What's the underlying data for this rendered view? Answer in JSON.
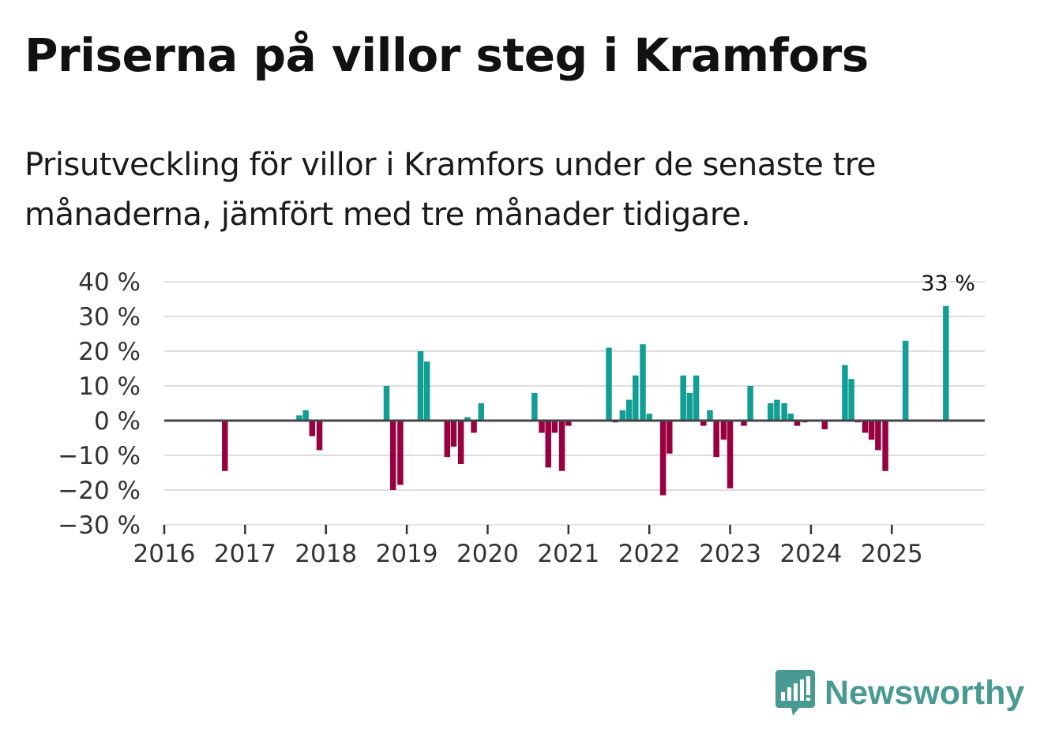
{
  "title": "Priserna på villor steg i Kramfors",
  "subtitle": "Prisutveckling för villor i Kramfors under de senaste tre månaderna, jämfört med tre månader tidigare.",
  "brand": {
    "name": "Newsworthy",
    "icon": "newsworthy-logo-icon"
  },
  "colors": {
    "positive": "#129e95",
    "negative": "#990040",
    "zero_line": "#444444",
    "grid": "#dddddd"
  },
  "chart_data": {
    "type": "bar",
    "unit": "%",
    "ylim": [
      -30,
      40
    ],
    "yticks": [
      -30,
      -20,
      -10,
      0,
      10,
      20,
      30,
      40
    ],
    "ytick_labels": [
      "−30 %",
      "−20 %",
      "−10 %",
      "0 %",
      "10 %",
      "20 %",
      "30 %",
      "40 %"
    ],
    "xlim": [
      2016.0,
      2026.15
    ],
    "xticks": [
      2016,
      2017,
      2018,
      2019,
      2020,
      2021,
      2022,
      2023,
      2024,
      2025
    ],
    "xtick_labels": [
      "2016",
      "2017",
      "2018",
      "2019",
      "2020",
      "2021",
      "2022",
      "2023",
      "2024",
      "2025"
    ],
    "annotation": {
      "text": "33 %",
      "x": 2025.67
    },
    "series": [
      {
        "name": "Prisutveckling",
        "points": [
          {
            "x": 2016.75,
            "y": -14.5
          },
          {
            "x": 2017.67,
            "y": 1.5
          },
          {
            "x": 2017.75,
            "y": 3.0
          },
          {
            "x": 2017.83,
            "y": -4.5
          },
          {
            "x": 2017.92,
            "y": -8.5
          },
          {
            "x": 2018.75,
            "y": 10.0
          },
          {
            "x": 2018.83,
            "y": -20.0
          },
          {
            "x": 2018.92,
            "y": -18.5
          },
          {
            "x": 2019.17,
            "y": 20.0
          },
          {
            "x": 2019.25,
            "y": 17.0
          },
          {
            "x": 2019.5,
            "y": -10.5
          },
          {
            "x": 2019.58,
            "y": -7.5
          },
          {
            "x": 2019.67,
            "y": -12.5
          },
          {
            "x": 2019.75,
            "y": 1.0
          },
          {
            "x": 2019.83,
            "y": -3.5
          },
          {
            "x": 2019.92,
            "y": 5.0
          },
          {
            "x": 2020.58,
            "y": 8.0
          },
          {
            "x": 2020.67,
            "y": -3.5
          },
          {
            "x": 2020.75,
            "y": -13.5
          },
          {
            "x": 2020.83,
            "y": -3.5
          },
          {
            "x": 2020.92,
            "y": -14.5
          },
          {
            "x": 2021.0,
            "y": -1.5
          },
          {
            "x": 2021.5,
            "y": 21.0
          },
          {
            "x": 2021.58,
            "y": -0.5
          },
          {
            "x": 2021.67,
            "y": 3.0
          },
          {
            "x": 2021.75,
            "y": 6.0
          },
          {
            "x": 2021.83,
            "y": 13.0
          },
          {
            "x": 2021.92,
            "y": 22.0
          },
          {
            "x": 2022.0,
            "y": 2.0
          },
          {
            "x": 2022.17,
            "y": -21.5
          },
          {
            "x": 2022.25,
            "y": -9.5
          },
          {
            "x": 2022.42,
            "y": 13.0
          },
          {
            "x": 2022.5,
            "y": 8.0
          },
          {
            "x": 2022.58,
            "y": 13.0
          },
          {
            "x": 2022.67,
            "y": -1.5
          },
          {
            "x": 2022.75,
            "y": 3.0
          },
          {
            "x": 2022.83,
            "y": -10.5
          },
          {
            "x": 2022.92,
            "y": -5.5
          },
          {
            "x": 2023.0,
            "y": -19.5
          },
          {
            "x": 2023.17,
            "y": -1.5
          },
          {
            "x": 2023.25,
            "y": 10.0
          },
          {
            "x": 2023.5,
            "y": 5.0
          },
          {
            "x": 2023.58,
            "y": 6.0
          },
          {
            "x": 2023.67,
            "y": 5.0
          },
          {
            "x": 2023.75,
            "y": 2.0
          },
          {
            "x": 2023.83,
            "y": -1.5
          },
          {
            "x": 2023.92,
            "y": -0.5
          },
          {
            "x": 2024.17,
            "y": -2.5
          },
          {
            "x": 2024.42,
            "y": 16.0
          },
          {
            "x": 2024.5,
            "y": 12.0
          },
          {
            "x": 2024.58,
            "y": -0.5
          },
          {
            "x": 2024.67,
            "y": -3.5
          },
          {
            "x": 2024.75,
            "y": -5.5
          },
          {
            "x": 2024.83,
            "y": -8.5
          },
          {
            "x": 2024.92,
            "y": -14.5
          },
          {
            "x": 2025.17,
            "y": 23.0
          },
          {
            "x": 2025.67,
            "y": 33.0
          }
        ]
      }
    ]
  }
}
